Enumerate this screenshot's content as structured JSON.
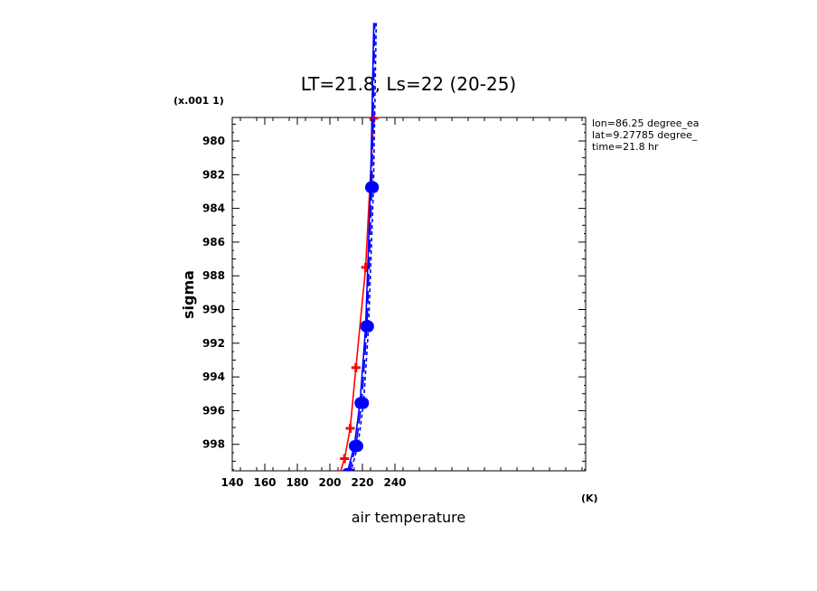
{
  "chart_data": {
    "type": "line",
    "title": "LT=21.8, Ls=22 (20-25)",
    "xlabel": "air temperature",
    "ylabel": "sigma",
    "x_unit": "(K)",
    "y_scale_note": "(x.001 1)",
    "xlim": [
      140,
      250
    ],
    "ylim": [
      999.8,
      978.6
    ],
    "x_ticks": [
      140,
      160,
      180,
      200,
      220,
      240
    ],
    "y_ticks": [
      980,
      982,
      984,
      986,
      988,
      990,
      992,
      994,
      996,
      998
    ],
    "info": [
      "lon=86.25 degree_ea",
      "lat=9.27785 degree_",
      "time=21.8 hr"
    ],
    "grid": false,
    "series": [
      {
        "color": "#ff0000",
        "style": "solid",
        "marker": "plus",
        "points": [
          [
            206.0,
            999.8
          ],
          [
            209.0,
            998.85
          ],
          [
            212.5,
            997.05
          ],
          [
            216.0,
            993.45
          ],
          [
            222.0,
            987.5
          ],
          [
            224.5,
            982.8
          ],
          [
            227.0,
            978.65
          ]
        ]
      },
      {
        "color": "#0000ff",
        "style": "solid",
        "marker": "circle",
        "points": [
          [
            210.5,
            999.75
          ],
          [
            215.0,
            998.1
          ],
          [
            218.5,
            995.55
          ],
          [
            222.0,
            991.0
          ],
          [
            225.0,
            982.75
          ],
          [
            227.0,
            973.0
          ]
        ]
      },
      {
        "color": "#0000ff",
        "style": "longdash",
        "marker": "circle",
        "points": [
          [
            211.5,
            999.75
          ],
          [
            216.0,
            998.1
          ],
          [
            219.5,
            995.55
          ],
          [
            222.8,
            991.0
          ],
          [
            225.8,
            982.75
          ],
          [
            227.6,
            973.0
          ]
        ]
      },
      {
        "color": "#0000ff",
        "style": "shortdash",
        "marker": "circle",
        "points": [
          [
            212.5,
            999.75
          ],
          [
            217.2,
            998.1
          ],
          [
            220.7,
            995.55
          ],
          [
            223.8,
            991.0
          ],
          [
            226.8,
            982.75
          ],
          [
            228.5,
            973.0
          ]
        ]
      }
    ]
  }
}
